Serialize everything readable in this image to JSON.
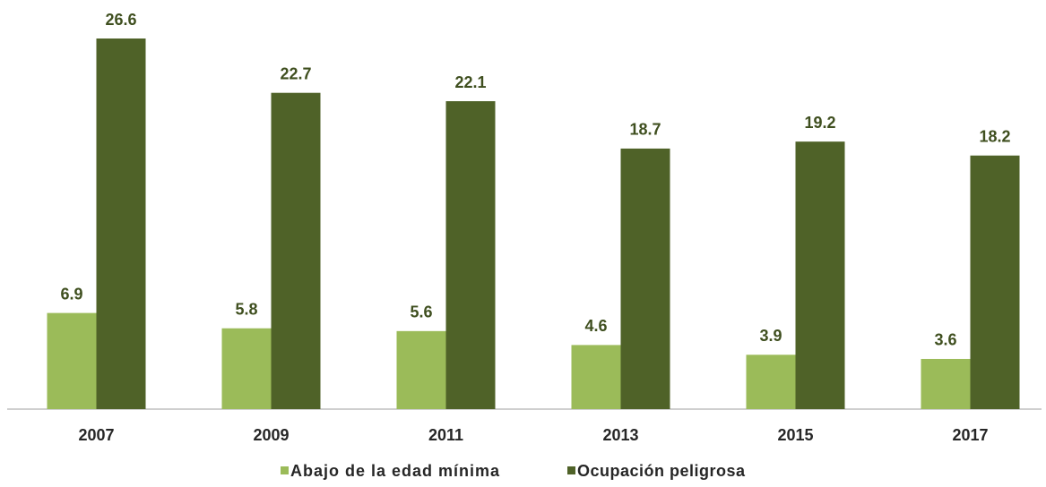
{
  "chart_data": {
    "type": "bar",
    "categories": [
      "2007",
      "2009",
      "2011",
      "2013",
      "2015",
      "2017"
    ],
    "series": [
      {
        "name": "Abajo de la edad mínima",
        "color": "#9bbb59",
        "values": [
          6.9,
          5.8,
          5.6,
          4.6,
          3.9,
          3.6
        ]
      },
      {
        "name": "Ocupación peligrosa",
        "color": "#4f6228",
        "values": [
          26.6,
          22.7,
          22.1,
          18.7,
          19.2,
          18.2
        ]
      }
    ]
  }
}
